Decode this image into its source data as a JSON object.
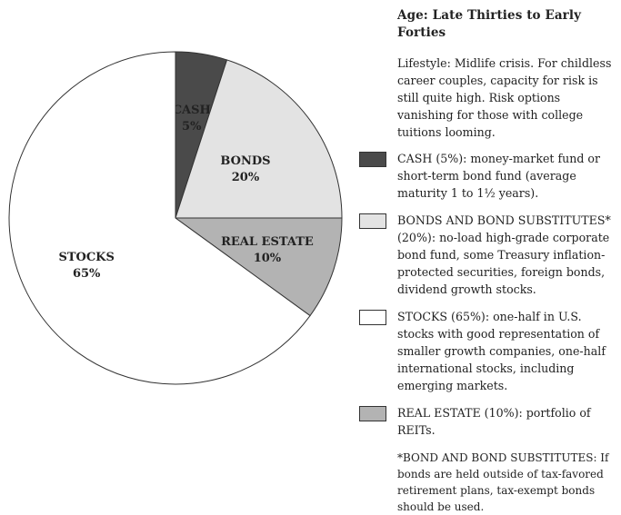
{
  "panel": {
    "title": "Age: Late Thirties to Early Forties",
    "lifestyle": "Lifestyle: Midlife crisis. For childless career couples, capacity for risk is still quite high. Risk options vanishing for those with college tuitions looming.",
    "legend": [
      {
        "key": "cash",
        "text": "CASH (5%): money-market fund or short-term bond fund (average maturity 1 to 1½ years)."
      },
      {
        "key": "bonds",
        "text": "BONDS AND BOND SUBSTITUTES* (20%): no-load high-grade corporate bond fund, some Treasury inflation-protected securities, foreign bonds, dividend growth stocks."
      },
      {
        "key": "stocks",
        "text": "STOCKS (65%): one-half in U.S. stocks with good representation of smaller growth companies, one-half international stocks, including emerging markets."
      },
      {
        "key": "real_estate",
        "text": "REAL ESTATE (10%): portfolio of REITs."
      }
    ],
    "footnote": "*BOND AND BOND SUBSTITUTES: If bonds are held outside of tax-favored retirement plans, tax-exempt bonds should be used."
  },
  "chart_data": {
    "type": "pie",
    "start": "12 o'clock, clockwise",
    "slices": [
      {
        "label": "CASH",
        "value": 5,
        "value_label": "5%",
        "color": "#4a4a4a",
        "label_color": "#ffffff"
      },
      {
        "label": "BONDS",
        "value": 20,
        "value_label": "20%",
        "color": "#e3e3e3",
        "label_color": "#222222"
      },
      {
        "label": "REAL ESTATE",
        "value": 10,
        "value_label": "10%",
        "color": "#b3b3b3",
        "label_color": "#222222"
      },
      {
        "label": "STOCKS",
        "value": 65,
        "value_label": "65%",
        "color": "#ffffff",
        "label_color": "#222222"
      }
    ],
    "legend_placement": "right"
  }
}
